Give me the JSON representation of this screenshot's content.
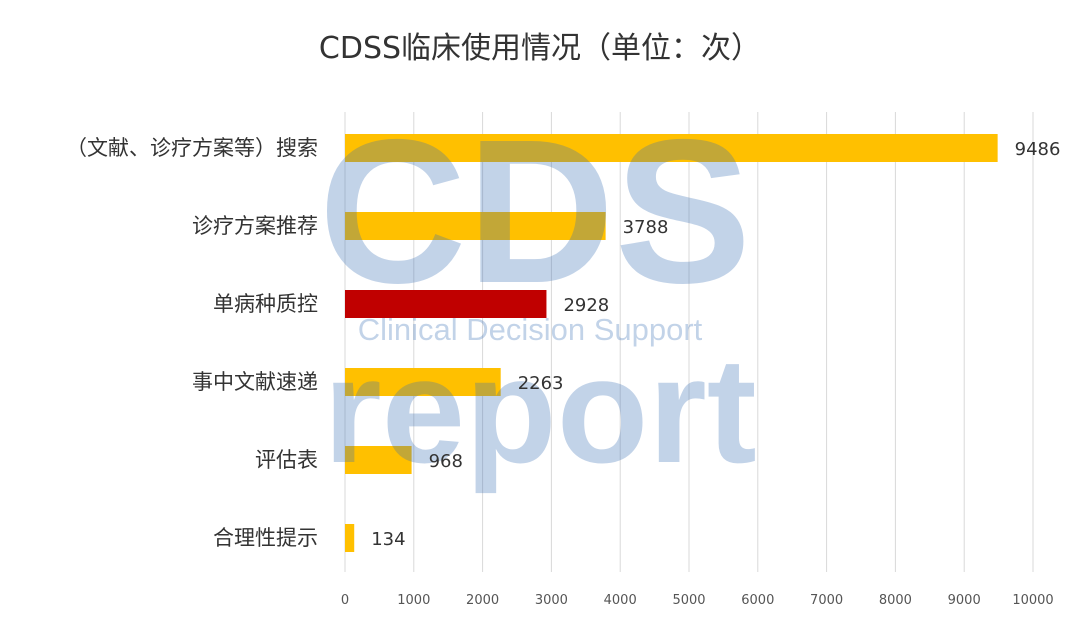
{
  "chart_data": {
    "type": "bar",
    "orientation": "horizontal",
    "title": "CDSS临床使用情况（单位：次）",
    "xlabel": "",
    "ylabel": "",
    "categories": [
      "（文献、诊疗方案等）搜索",
      "诊疗方案推荐",
      "单病种质控",
      "事中文献速递",
      "评估表",
      "合理性提示"
    ],
    "values": [
      9486,
      3788,
      2928,
      2263,
      968,
      134
    ],
    "xlim": [
      0,
      10000
    ],
    "xticks": [
      "0",
      "1000",
      "2000",
      "3000",
      "4000",
      "5000",
      "6000",
      "7000",
      "8000",
      "9000",
      "10000"
    ],
    "grid": "vertical",
    "legend": "none",
    "colors": {
      "default_bar": "#FFC000",
      "highlight_bar": "#C00000",
      "highlight_category": "单病种质控",
      "gridline": "#d9d9d9",
      "text": "#333333"
    }
  },
  "watermark": {
    "logo": "CDS",
    "subtitle": "Clinical Decision Support",
    "word": "report",
    "color": "#3a6fb5"
  }
}
